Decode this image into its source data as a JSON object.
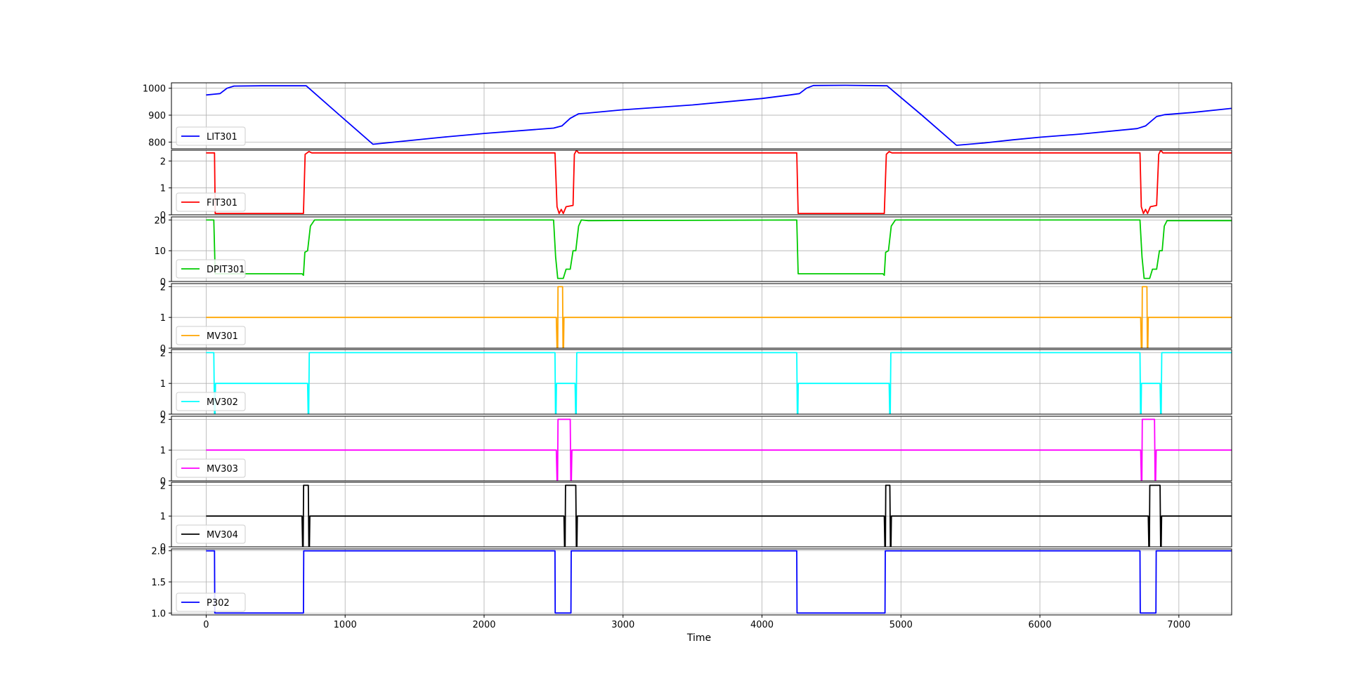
{
  "chart_data": {
    "type": "line",
    "xlabel": "Time",
    "xlim": [
      -250,
      7380
    ],
    "xticks": [
      0,
      1000,
      2000,
      3000,
      4000,
      5000,
      6000,
      7000
    ],
    "grid": true,
    "legend_placement": "lower-left",
    "panels": [
      {
        "name": "LIT301",
        "color": "#0000ff",
        "ylim": [
          775,
          1020
        ],
        "yticks": [
          800,
          900,
          1000
        ],
        "tick_labels": [
          "800",
          "900",
          "1000"
        ],
        "points": [
          [
            0,
            975
          ],
          [
            60,
            978
          ],
          [
            100,
            980
          ],
          [
            150,
            1000
          ],
          [
            200,
            1008
          ],
          [
            400,
            1009
          ],
          [
            700,
            1009
          ],
          [
            720,
            1009
          ],
          [
            960,
            900
          ],
          [
            1200,
            792
          ],
          [
            1450,
            805
          ],
          [
            1700,
            818
          ],
          [
            2000,
            832
          ],
          [
            2500,
            852
          ],
          [
            2560,
            860
          ],
          [
            2620,
            888
          ],
          [
            2680,
            905
          ],
          [
            2750,
            908
          ],
          [
            3000,
            920
          ],
          [
            3500,
            938
          ],
          [
            4000,
            962
          ],
          [
            4200,
            975
          ],
          [
            4270,
            980
          ],
          [
            4320,
            1000
          ],
          [
            4370,
            1010
          ],
          [
            4600,
            1011
          ],
          [
            4880,
            1009
          ],
          [
            4900,
            1009
          ],
          [
            5150,
            900
          ],
          [
            5400,
            788
          ],
          [
            5600,
            797
          ],
          [
            5800,
            808
          ],
          [
            6000,
            818
          ],
          [
            6300,
            830
          ],
          [
            6700,
            850
          ],
          [
            6760,
            860
          ],
          [
            6840,
            895
          ],
          [
            6900,
            902
          ],
          [
            7100,
            910
          ],
          [
            7380,
            925
          ]
        ]
      },
      {
        "name": "FIT301",
        "color": "#ff0000",
        "ylim": [
          0,
          2.4
        ],
        "yticks": [
          0,
          1,
          2
        ],
        "tick_labels": [
          "0",
          "1",
          "2"
        ],
        "points": [
          [
            0,
            2.3
          ],
          [
            60,
            2.3
          ],
          [
            65,
            0.05
          ],
          [
            700,
            0.05
          ],
          [
            712,
            2.25
          ],
          [
            740,
            2.35
          ],
          [
            760,
            2.3
          ],
          [
            2510,
            2.3
          ],
          [
            2525,
            0.3
          ],
          [
            2540,
            0.05
          ],
          [
            2555,
            0.2
          ],
          [
            2570,
            0.05
          ],
          [
            2590,
            0.3
          ],
          [
            2640,
            0.35
          ],
          [
            2650,
            2.25
          ],
          [
            2665,
            2.4
          ],
          [
            2680,
            2.3
          ],
          [
            4250,
            2.3
          ],
          [
            4260,
            0.05
          ],
          [
            4880,
            0.05
          ],
          [
            4895,
            2.25
          ],
          [
            4915,
            2.35
          ],
          [
            4935,
            2.3
          ],
          [
            6720,
            2.3
          ],
          [
            6730,
            0.3
          ],
          [
            6745,
            0.05
          ],
          [
            6760,
            0.2
          ],
          [
            6775,
            0.05
          ],
          [
            6795,
            0.3
          ],
          [
            6840,
            0.35
          ],
          [
            6855,
            2.25
          ],
          [
            6870,
            2.4
          ],
          [
            6885,
            2.3
          ],
          [
            7380,
            2.3
          ]
        ]
      },
      {
        "name": "DPIT301",
        "color": "#00cc00",
        "ylim": [
          0,
          21
        ],
        "yticks": [
          0,
          10,
          20
        ],
        "tick_labels": [
          "0",
          "10",
          "20"
        ],
        "points": [
          [
            0,
            20
          ],
          [
            55,
            20
          ],
          [
            65,
            2.5
          ],
          [
            690,
            2.5
          ],
          [
            700,
            2
          ],
          [
            710,
            9.5
          ],
          [
            730,
            10
          ],
          [
            750,
            18
          ],
          [
            780,
            20
          ],
          [
            2500,
            20
          ],
          [
            2515,
            8
          ],
          [
            2530,
            1
          ],
          [
            2570,
            1
          ],
          [
            2590,
            4
          ],
          [
            2620,
            4
          ],
          [
            2640,
            10
          ],
          [
            2660,
            10
          ],
          [
            2680,
            18
          ],
          [
            2700,
            20
          ],
          [
            2750,
            19.8
          ],
          [
            4250,
            20
          ],
          [
            4260,
            2.5
          ],
          [
            4870,
            2.5
          ],
          [
            4880,
            2
          ],
          [
            4890,
            9.5
          ],
          [
            4910,
            10
          ],
          [
            4930,
            18
          ],
          [
            4960,
            20
          ],
          [
            6720,
            20
          ],
          [
            6735,
            8
          ],
          [
            6750,
            1
          ],
          [
            6790,
            1
          ],
          [
            6810,
            4
          ],
          [
            6840,
            4
          ],
          [
            6860,
            10
          ],
          [
            6880,
            10
          ],
          [
            6895,
            18
          ],
          [
            6915,
            19.8
          ],
          [
            7380,
            19.8
          ]
        ]
      },
      {
        "name": "MV301",
        "color": "#ffa500",
        "ylim": [
          0,
          2.1
        ],
        "yticks": [
          0,
          1,
          2
        ],
        "tick_labels": [
          "0",
          "1",
          "2"
        ],
        "points": [
          [
            0,
            1
          ],
          [
            2520,
            1
          ],
          [
            2525,
            0
          ],
          [
            2530,
            0
          ],
          [
            2532,
            2
          ],
          [
            2565,
            2
          ],
          [
            2568,
            0
          ],
          [
            2572,
            0
          ],
          [
            2575,
            1
          ],
          [
            6725,
            1
          ],
          [
            6730,
            0
          ],
          [
            6735,
            0
          ],
          [
            6737,
            2
          ],
          [
            6770,
            2
          ],
          [
            6773,
            0
          ],
          [
            6777,
            0
          ],
          [
            6780,
            1
          ],
          [
            7380,
            1
          ]
        ]
      },
      {
        "name": "MV302",
        "color": "#00ffff",
        "ylim": [
          0,
          2.1
        ],
        "yticks": [
          0,
          1,
          2
        ],
        "tick_labels": [
          "0",
          "1",
          "2"
        ],
        "points": [
          [
            0,
            2
          ],
          [
            55,
            2
          ],
          [
            60,
            0
          ],
          [
            64,
            0
          ],
          [
            67,
            1
          ],
          [
            730,
            1
          ],
          [
            734,
            0
          ],
          [
            738,
            0
          ],
          [
            742,
            2
          ],
          [
            2510,
            2
          ],
          [
            2514,
            0
          ],
          [
            2518,
            0
          ],
          [
            2521,
            1
          ],
          [
            2655,
            1
          ],
          [
            2659,
            0
          ],
          [
            2663,
            0
          ],
          [
            2667,
            2
          ],
          [
            4250,
            2
          ],
          [
            4254,
            0
          ],
          [
            4258,
            0
          ],
          [
            4261,
            1
          ],
          [
            4915,
            1
          ],
          [
            4919,
            0
          ],
          [
            4923,
            0
          ],
          [
            4927,
            2
          ],
          [
            6720,
            2
          ],
          [
            6724,
            0
          ],
          [
            6728,
            0
          ],
          [
            6731,
            1
          ],
          [
            6865,
            1
          ],
          [
            6869,
            0
          ],
          [
            6873,
            0
          ],
          [
            6877,
            2
          ],
          [
            7380,
            2
          ]
        ]
      },
      {
        "name": "MV303",
        "color": "#ff00ff",
        "ylim": [
          0,
          2.1
        ],
        "yticks": [
          0,
          1,
          2
        ],
        "tick_labels": [
          "0",
          "1",
          "2"
        ],
        "points": [
          [
            0,
            1
          ],
          [
            2520,
            1
          ],
          [
            2525,
            0
          ],
          [
            2529,
            0
          ],
          [
            2532,
            2
          ],
          [
            2620,
            2
          ],
          [
            2624,
            0
          ],
          [
            2628,
            0
          ],
          [
            2632,
            1
          ],
          [
            6725,
            1
          ],
          [
            6730,
            0
          ],
          [
            6734,
            0
          ],
          [
            6737,
            2
          ],
          [
            6825,
            2
          ],
          [
            6829,
            0
          ],
          [
            6833,
            0
          ],
          [
            6837,
            1
          ],
          [
            7380,
            1
          ]
        ]
      },
      {
        "name": "MV304",
        "color": "#000000",
        "ylim": [
          0,
          2.1
        ],
        "yticks": [
          0,
          1,
          2
        ],
        "tick_labels": [
          "0",
          "1",
          "2"
        ],
        "points": [
          [
            0,
            1
          ],
          [
            690,
            1
          ],
          [
            694,
            0
          ],
          [
            698,
            0
          ],
          [
            701,
            2
          ],
          [
            735,
            2
          ],
          [
            739,
            0
          ],
          [
            743,
            0
          ],
          [
            746,
            1
          ],
          [
            2575,
            1
          ],
          [
            2579,
            0
          ],
          [
            2583,
            0
          ],
          [
            2586,
            2
          ],
          [
            2660,
            2
          ],
          [
            2664,
            0
          ],
          [
            2668,
            0
          ],
          [
            2671,
            1
          ],
          [
            4880,
            1
          ],
          [
            4884,
            0
          ],
          [
            4888,
            0
          ],
          [
            4891,
            2
          ],
          [
            4920,
            2
          ],
          [
            4924,
            0
          ],
          [
            4928,
            0
          ],
          [
            4931,
            1
          ],
          [
            6780,
            1
          ],
          [
            6784,
            0
          ],
          [
            6788,
            0
          ],
          [
            6791,
            2
          ],
          [
            6865,
            2
          ],
          [
            6869,
            0
          ],
          [
            6873,
            0
          ],
          [
            6876,
            1
          ],
          [
            7380,
            1
          ]
        ]
      },
      {
        "name": "P302",
        "color": "#0000ff",
        "ylim": [
          0.97,
          2.03
        ],
        "yticks": [
          1.0,
          1.5,
          2.0
        ],
        "tick_labels": [
          "1.0",
          "1.5",
          "2.0"
        ],
        "points": [
          [
            0,
            2
          ],
          [
            60,
            2
          ],
          [
            62,
            1
          ],
          [
            700,
            1
          ],
          [
            702,
            2
          ],
          [
            2510,
            2
          ],
          [
            2512,
            1
          ],
          [
            2625,
            1
          ],
          [
            2627,
            2
          ],
          [
            4250,
            2
          ],
          [
            4252,
            1
          ],
          [
            4885,
            1
          ],
          [
            4887,
            2
          ],
          [
            6720,
            2
          ],
          [
            6722,
            1
          ],
          [
            6835,
            1
          ],
          [
            6837,
            2
          ],
          [
            7380,
            2
          ]
        ]
      }
    ]
  }
}
